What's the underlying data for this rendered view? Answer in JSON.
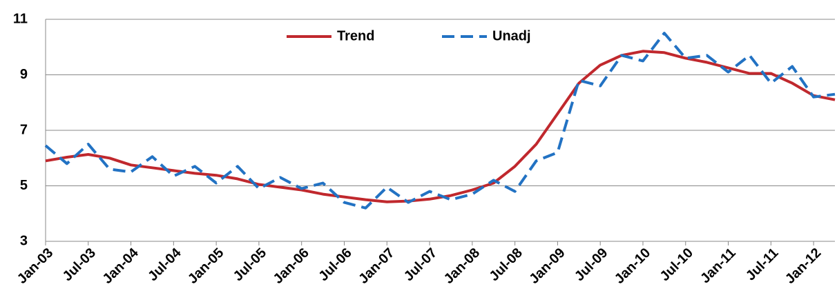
{
  "chart_data": {
    "type": "line",
    "categories": [
      "Jan-03",
      null,
      "Jul-03",
      null,
      "Jan-04",
      null,
      "Jul-04",
      null,
      "Jan-05",
      null,
      "Jul-05",
      null,
      "Jan-06",
      null,
      "Jul-06",
      null,
      "Jan-07",
      null,
      "Jul-07",
      null,
      "Jan-08",
      null,
      "Jul-08",
      null,
      "Jan-09",
      null,
      "Jul-09",
      null,
      "Jan-10",
      null,
      "Jul-10",
      null,
      "Jan-11",
      null,
      "Jul-11",
      null,
      "Jan-12",
      null
    ],
    "series": [
      {
        "name": "Trend",
        "color": "#c0282d",
        "dashed": false,
        "values": [
          5.9,
          6.03,
          6.13,
          6.0,
          5.75,
          5.65,
          5.55,
          5.45,
          5.38,
          5.25,
          5.05,
          4.95,
          4.85,
          4.7,
          4.6,
          4.5,
          4.42,
          4.45,
          4.52,
          4.65,
          4.85,
          5.1,
          5.7,
          6.5,
          7.6,
          8.7,
          9.35,
          9.7,
          9.85,
          9.8,
          9.6,
          9.45,
          9.25,
          9.05,
          9.05,
          8.7,
          8.25,
          8.1
        ]
      },
      {
        "name": "Unadj",
        "color": "#2272c3",
        "dashed": true,
        "values": [
          6.45,
          5.8,
          6.5,
          5.6,
          5.5,
          6.05,
          5.35,
          5.7,
          5.1,
          5.7,
          4.9,
          5.3,
          4.9,
          5.1,
          4.4,
          4.2,
          4.95,
          4.4,
          4.8,
          4.5,
          4.7,
          5.2,
          4.8,
          5.9,
          6.2,
          8.8,
          8.6,
          9.7,
          9.5,
          10.5,
          9.6,
          9.7,
          9.1,
          9.7,
          8.7,
          9.3,
          8.2,
          8.3
        ]
      }
    ],
    "ylim": [
      3,
      11
    ],
    "yticks": [
      3,
      5,
      7,
      9,
      11
    ],
    "grid": true,
    "legend": "top"
  }
}
